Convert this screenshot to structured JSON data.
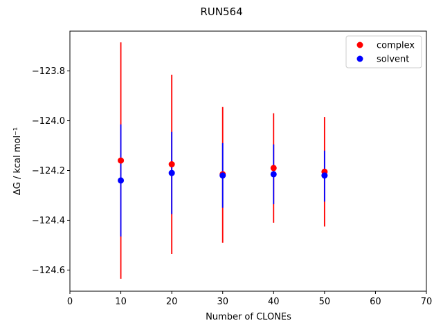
{
  "chart_data": {
    "type": "scatter",
    "title": "RUN564",
    "xlabel": "Number of CLONEs",
    "ylabel": "ΔG / kcal mol⁻¹",
    "xlim": [
      0,
      70
    ],
    "ylim": [
      -124.685,
      -123.64
    ],
    "xticks": [
      0,
      10,
      20,
      30,
      40,
      50,
      60,
      70
    ],
    "yticks": [
      -124.6,
      -124.4,
      -124.2,
      -124.0,
      -123.8
    ],
    "ytick_labels": [
      "−124.6",
      "−124.4",
      "−124.2",
      "−124.0",
      "−123.8"
    ],
    "grid": false,
    "legend_position": "top-right",
    "series": [
      {
        "name": "complex",
        "color": "#ff0000",
        "x": [
          10,
          20,
          30,
          40,
          50
        ],
        "y": [
          -124.16,
          -124.175,
          -124.215,
          -124.19,
          -124.205
        ],
        "yerr_low": [
          -124.635,
          -124.535,
          -124.49,
          -124.41,
          -124.425
        ],
        "yerr_high": [
          -123.685,
          -123.815,
          -123.945,
          -123.97,
          -123.985
        ]
      },
      {
        "name": "solvent",
        "color": "#0000ff",
        "x": [
          10,
          20,
          30,
          40,
          50
        ],
        "y": [
          -124.24,
          -124.21,
          -124.22,
          -124.215,
          -124.22
        ],
        "yerr_low": [
          -124.465,
          -124.375,
          -124.35,
          -124.335,
          -124.325
        ],
        "yerr_high": [
          -124.015,
          -124.045,
          -124.09,
          -124.095,
          -124.12
        ]
      }
    ]
  }
}
